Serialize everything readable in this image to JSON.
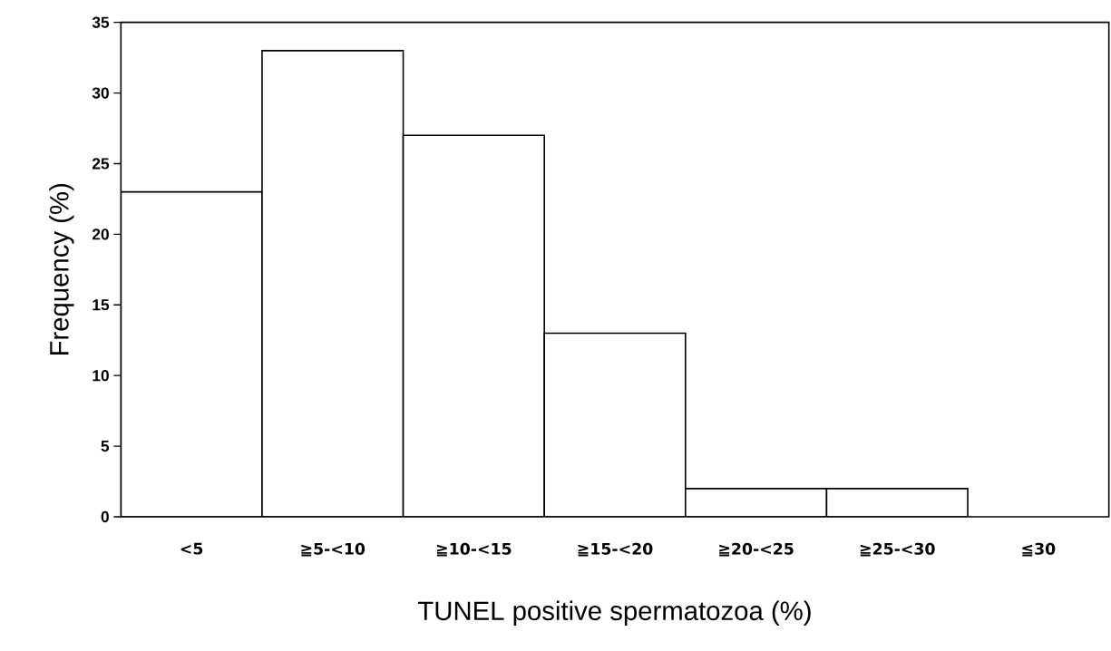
{
  "chart_data": {
    "type": "bar",
    "categories": [
      "<5",
      "≧5-<10",
      "≧10-<15",
      "≧15-<20",
      "≧20-<25",
      "≧25-<30",
      "≦30"
    ],
    "values": [
      23,
      33,
      27,
      13,
      2,
      2,
      0
    ],
    "color": "#ffffff",
    "xlabel": "TUNEL positive spermatozoa (%)",
    "ylabel": "Frequency (%)",
    "ylim": [
      0,
      35
    ],
    "yticks": [
      0,
      5,
      10,
      15,
      20,
      25,
      30,
      35
    ],
    "grid": false
  }
}
